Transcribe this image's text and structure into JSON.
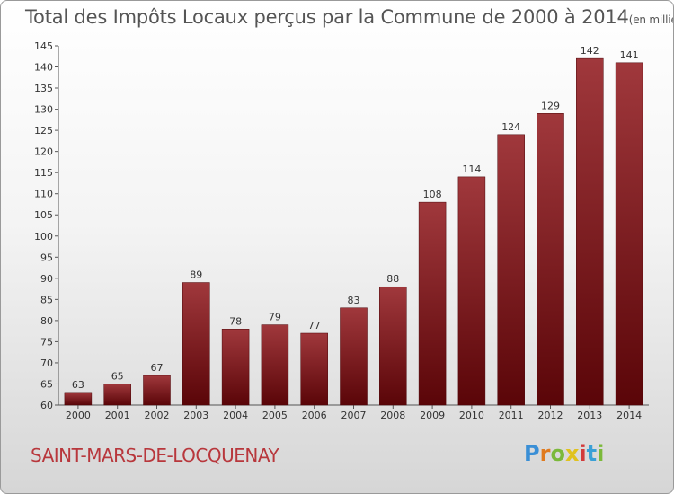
{
  "title": "Total des Impôts Locaux perçus par la Commune de 2000 à 2014",
  "unit": "(en milliers d'€)",
  "commune": "SAINT-MARS-DE-LOCQUENAY",
  "logo": {
    "letters": [
      "P",
      "r",
      "o",
      "x",
      "i",
      "t",
      "i"
    ],
    "colors": [
      "#3a8fd6",
      "#e07a1e",
      "#7bb93a",
      "#e0c21e",
      "#d23a3a",
      "#3aa0d6",
      "#7bb93a"
    ]
  },
  "chart_data": {
    "type": "bar",
    "categories": [
      "2000",
      "2001",
      "2002",
      "2003",
      "2004",
      "2005",
      "2006",
      "2007",
      "2008",
      "2009",
      "2010",
      "2011",
      "2012",
      "2013",
      "2014"
    ],
    "values": [
      63,
      65,
      67,
      89,
      78,
      79,
      77,
      83,
      88,
      108,
      114,
      124,
      129,
      142,
      141
    ],
    "ylim": [
      60,
      145
    ],
    "yticks": [
      60,
      65,
      70,
      75,
      80,
      85,
      90,
      95,
      100,
      105,
      110,
      115,
      120,
      125,
      130,
      135,
      140,
      145
    ],
    "bar_color": "#7a1318",
    "grid": false
  }
}
